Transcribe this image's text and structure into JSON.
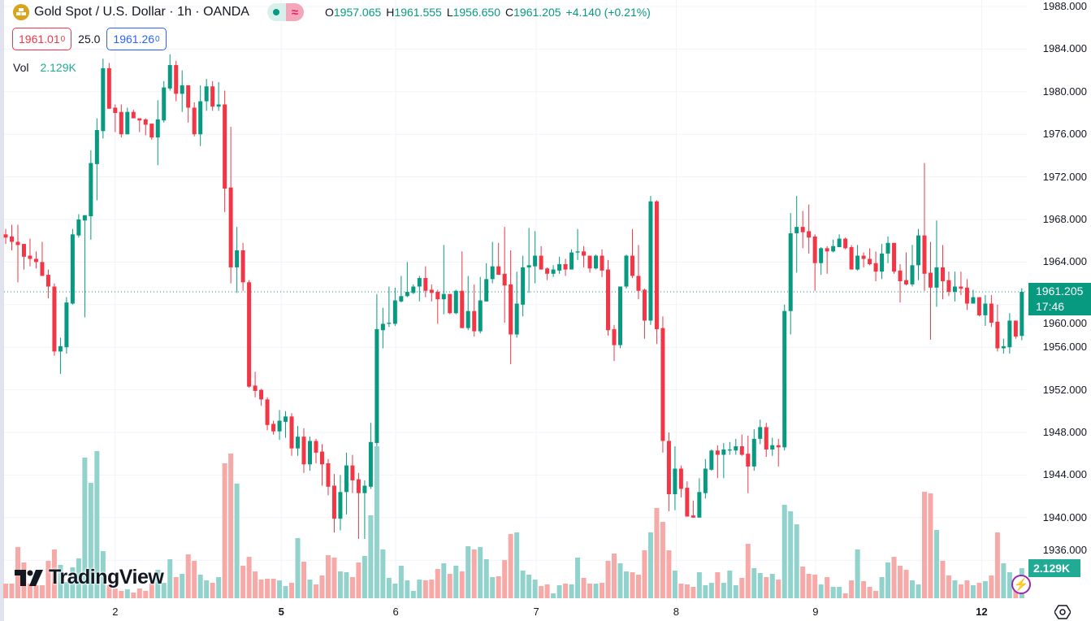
{
  "header": {
    "title": "Gold Spot / U.S. Dollar · 1h · OANDA",
    "status_glyph": "≈",
    "ohlc": [
      {
        "k": "O",
        "v": "1957.065"
      },
      {
        "k": "H",
        "v": "1961.555"
      },
      {
        "k": "L",
        "v": "1956.650"
      },
      {
        "k": "C",
        "v": "1961.205"
      }
    ],
    "change": "+4.140 (+0.21%)",
    "sell_price": "1961.01",
    "sell_sup": "0",
    "spread": "25.0",
    "buy_price": "1961.26",
    "buy_sup": "0",
    "vol_label": "Vol",
    "vol_value": "2.129K"
  },
  "price_tag": {
    "price": "1961.205",
    "countdown": "17:46"
  },
  "volume_tag": "2.129K",
  "logo_text": "TradingView",
  "colors": {
    "up": "#089981",
    "down": "#f23645",
    "vol_up": "#92d2cc",
    "vol_down": "#f7a9a7"
  },
  "chart_data": {
    "type": "candlestick",
    "symbol": "XAUUSD",
    "interval": "1h",
    "ylim": [
      1934,
      1988
    ],
    "yticks": [
      "1988.000",
      "1984.000",
      "1980.000",
      "1976.000",
      "1972.000",
      "1968.000",
      "1964.000",
      "1960.000",
      "1956.000",
      "1952.000",
      "1948.000",
      "1944.000",
      "1940.000",
      "1936.000"
    ],
    "ytick_values": [
      1988,
      1984,
      1980,
      1976,
      1972,
      1968,
      1964,
      1960,
      1956,
      1952,
      1948,
      1944,
      1940,
      1936
    ],
    "xticks": [
      {
        "label": "2",
        "index": 18,
        "bold": false
      },
      {
        "label": "5",
        "index": 45.3,
        "bold": true
      },
      {
        "label": "6",
        "index": 64.1,
        "bold": false
      },
      {
        "label": "7",
        "index": 87.2,
        "bold": false
      },
      {
        "label": "8",
        "index": 110.2,
        "bold": false
      },
      {
        "label": "9",
        "index": 133.1,
        "bold": false
      },
      {
        "label": "12",
        "index": 160.4,
        "bold": true
      }
    ],
    "last_price": 1961.205,
    "ohlc": [
      [
        1966.6,
        1967.1,
        1965.7,
        1966.3
      ],
      [
        1966.4,
        1967.5,
        1965.1,
        1965.9
      ],
      [
        1965.9,
        1967.5,
        1962.1,
        1965.6
      ],
      [
        1965.7,
        1965.7,
        1963.3,
        1964.5
      ],
      [
        1964.6,
        1966.2,
        1963.6,
        1964.3
      ],
      [
        1964.3,
        1965.0,
        1963.4,
        1964.0
      ],
      [
        1964.0,
        1965.9,
        1962.7,
        1962.7
      ],
      [
        1962.8,
        1963.3,
        1960.6,
        1961.7
      ],
      [
        1961.7,
        1962.0,
        1955.2,
        1955.6
      ],
      [
        1955.6,
        1956.9,
        1953.5,
        1956.1
      ],
      [
        1956.0,
        1960.7,
        1955.4,
        1960.2
      ],
      [
        1960.1,
        1967.1,
        1960.0,
        1966.6
      ],
      [
        1966.5,
        1968.5,
        1966.3,
        1968.0
      ],
      [
        1967.9,
        1968.4,
        1958.8,
        1968.4
      ],
      [
        1968.3,
        1974.5,
        1966.1,
        1973.3
      ],
      [
        1973.2,
        1977.5,
        1969.8,
        1976.4
      ],
      [
        1976.3,
        1983.1,
        1975.6,
        1982.2
      ],
      [
        1982.2,
        1982.7,
        1978.4,
        1978.4
      ],
      [
        1978.5,
        1978.8,
        1976.2,
        1978.0
      ],
      [
        1978.1,
        1978.8,
        1975.7,
        1976.0
      ],
      [
        1976.0,
        1978.5,
        1976.0,
        1978.1
      ],
      [
        1978.1,
        1978.3,
        1977.5,
        1977.5
      ],
      [
        1977.5,
        1977.5,
        1976.2,
        1977.3
      ],
      [
        1977.4,
        1977.5,
        1975.9,
        1976.9
      ],
      [
        1977.0,
        1977.0,
        1975.5,
        1975.7
      ],
      [
        1975.7,
        1979.2,
        1973.1,
        1977.4
      ],
      [
        1977.3,
        1981.0,
        1977.1,
        1980.4
      ],
      [
        1980.3,
        1983.5,
        1980.1,
        1982.5
      ],
      [
        1982.5,
        1982.9,
        1979.1,
        1979.8
      ],
      [
        1979.8,
        1982.0,
        1978.1,
        1980.6
      ],
      [
        1980.6,
        1980.6,
        1977.1,
        1978.5
      ],
      [
        1978.5,
        1979.0,
        1975.8,
        1976.0
      ],
      [
        1976.0,
        1980.6,
        1974.9,
        1979.1
      ],
      [
        1979.1,
        1981.2,
        1978.2,
        1980.5
      ],
      [
        1980.5,
        1981.0,
        1978.2,
        1978.6
      ],
      [
        1978.6,
        1980.9,
        1978.2,
        1978.8
      ],
      [
        1978.8,
        1980.1,
        1968.7,
        1970.9
      ],
      [
        1971.0,
        1976.7,
        1962.0,
        1963.5
      ],
      [
        1963.5,
        1967.3,
        1961.1,
        1965.1
      ],
      [
        1965.1,
        1965.8,
        1961.3,
        1962.1
      ],
      [
        1962.1,
        1962.3,
        1952.2,
        1952.3
      ],
      [
        1952.4,
        1953.7,
        1951.3,
        1951.9
      ],
      [
        1952.0,
        1952.1,
        1950.5,
        1951.1
      ],
      [
        1951.1,
        1951.3,
        1948.2,
        1948.7
      ],
      [
        1948.8,
        1949.1,
        1947.8,
        1948.1
      ],
      [
        1948.1,
        1950.1,
        1947.3,
        1949.1
      ],
      [
        1949.0,
        1950.0,
        1947.5,
        1949.5
      ],
      [
        1949.5,
        1949.8,
        1945.8,
        1946.5
      ],
      [
        1946.5,
        1948.6,
        1945.8,
        1947.6
      ],
      [
        1947.6,
        1948.4,
        1944.2,
        1945.0
      ],
      [
        1945.0,
        1947.6,
        1944.4,
        1947.2
      ],
      [
        1947.2,
        1947.4,
        1945.1,
        1946.1
      ],
      [
        1946.2,
        1946.9,
        1943.0,
        1945.0
      ],
      [
        1945.1,
        1945.5,
        1942.1,
        1942.9
      ],
      [
        1943.0,
        1944.1,
        1938.6,
        1939.9
      ],
      [
        1939.9,
        1944.0,
        1938.8,
        1942.4
      ],
      [
        1942.4,
        1946.1,
        1940.3,
        1944.9
      ],
      [
        1944.9,
        1945.9,
        1942.3,
        1943.5
      ],
      [
        1943.6,
        1944.2,
        1938.0,
        1942.3
      ],
      [
        1942.3,
        1943.5,
        1938.0,
        1943.0
      ],
      [
        1942.9,
        1948.9,
        1942.7,
        1947.1
      ],
      [
        1947.0,
        1961.0,
        1946.7,
        1957.7
      ],
      [
        1957.6,
        1959.7,
        1955.9,
        1958.2
      ],
      [
        1958.2,
        1961.7,
        1957.9,
        1958.3
      ],
      [
        1958.2,
        1961.6,
        1958.0,
        1960.4
      ],
      [
        1960.3,
        1962.7,
        1960.2,
        1960.8
      ],
      [
        1960.8,
        1964.0,
        1960.7,
        1961.2
      ],
      [
        1961.1,
        1961.9,
        1961.0,
        1961.7
      ],
      [
        1961.7,
        1962.7,
        1960.3,
        1962.5
      ],
      [
        1962.5,
        1963.6,
        1960.7,
        1961.3
      ],
      [
        1961.4,
        1961.9,
        1960.3,
        1961.1
      ],
      [
        1961.2,
        1961.4,
        1958.2,
        1960.5
      ],
      [
        1960.5,
        1965.6,
        1959.1,
        1961.0
      ],
      [
        1961.0,
        1961.0,
        1959.1,
        1959.2
      ],
      [
        1959.2,
        1961.4,
        1959.1,
        1961.3
      ],
      [
        1961.3,
        1965.0,
        1957.8,
        1957.8
      ],
      [
        1957.8,
        1962.7,
        1957.6,
        1959.4
      ],
      [
        1959.4,
        1961.9,
        1957.0,
        1957.5
      ],
      [
        1957.5,
        1962.6,
        1957.3,
        1960.4
      ],
      [
        1960.3,
        1963.9,
        1960.3,
        1962.4
      ],
      [
        1962.4,
        1965.9,
        1962.0,
        1963.6
      ],
      [
        1963.6,
        1965.8,
        1962.8,
        1962.8
      ],
      [
        1962.9,
        1967.3,
        1958.3,
        1961.8
      ],
      [
        1961.9,
        1965.1,
        1954.4,
        1957.2
      ],
      [
        1957.2,
        1963.1,
        1956.9,
        1960.1
      ],
      [
        1960.0,
        1964.6,
        1958.9,
        1963.5
      ],
      [
        1963.5,
        1967.2,
        1961.1,
        1963.7
      ],
      [
        1963.6,
        1966.9,
        1962.0,
        1964.6
      ],
      [
        1964.6,
        1965.5,
        1963.3,
        1963.3
      ],
      [
        1963.4,
        1963.5,
        1962.3,
        1962.9
      ],
      [
        1962.9,
        1963.7,
        1962.6,
        1963.3
      ],
      [
        1963.2,
        1964.5,
        1962.9,
        1963.8
      ],
      [
        1963.8,
        1964.3,
        1962.7,
        1963.3
      ],
      [
        1963.3,
        1965.2,
        1963.3,
        1964.9
      ],
      [
        1964.9,
        1967.1,
        1964.2,
        1965.0
      ],
      [
        1965.0,
        1965.5,
        1963.5,
        1964.6
      ],
      [
        1964.6,
        1964.6,
        1963.0,
        1963.4
      ],
      [
        1963.4,
        1964.7,
        1963.3,
        1964.6
      ],
      [
        1964.6,
        1965.2,
        1962.6,
        1963.2
      ],
      [
        1963.3,
        1964.2,
        1957.1,
        1957.6
      ],
      [
        1957.7,
        1958.1,
        1954.7,
        1956.2
      ],
      [
        1956.2,
        1961.7,
        1955.9,
        1961.7
      ],
      [
        1961.7,
        1964.7,
        1961.5,
        1964.6
      ],
      [
        1964.6,
        1967.1,
        1962.5,
        1962.7
      ],
      [
        1962.7,
        1965.6,
        1960.5,
        1961.3
      ],
      [
        1961.4,
        1961.5,
        1956.8,
        1958.5
      ],
      [
        1958.5,
        1970.2,
        1958.1,
        1969.7
      ],
      [
        1969.7,
        1969.8,
        1956.3,
        1957.7
      ],
      [
        1957.8,
        1958.9,
        1946.1,
        1947.2
      ],
      [
        1947.2,
        1948.0,
        1940.6,
        1942.2
      ],
      [
        1942.2,
        1946.7,
        1940.7,
        1944.6
      ],
      [
        1944.6,
        1944.9,
        1941.9,
        1942.7
      ],
      [
        1942.8,
        1943.4,
        1940.1,
        1940.1
      ],
      [
        1940.2,
        1941.6,
        1940.0,
        1940.0
      ],
      [
        1940.0,
        1943.7,
        1940.0,
        1942.4
      ],
      [
        1942.3,
        1945.5,
        1941.8,
        1944.6
      ],
      [
        1944.5,
        1946.4,
        1944.4,
        1946.3
      ],
      [
        1946.3,
        1946.8,
        1943.7,
        1945.9
      ],
      [
        1945.9,
        1947.0,
        1943.7,
        1946.4
      ],
      [
        1946.3,
        1947.1,
        1945.9,
        1946.4
      ],
      [
        1946.3,
        1947.4,
        1945.9,
        1946.7
      ],
      [
        1946.7,
        1947.8,
        1945.8,
        1945.9
      ],
      [
        1946.0,
        1947.7,
        1942.3,
        1944.8
      ],
      [
        1944.8,
        1948.3,
        1944.4,
        1947.4
      ],
      [
        1947.4,
        1949.2,
        1946.9,
        1948.5
      ],
      [
        1948.5,
        1948.9,
        1945.7,
        1946.4
      ],
      [
        1946.4,
        1947.5,
        1945.8,
        1946.8
      ],
      [
        1946.8,
        1947.4,
        1944.8,
        1946.6
      ],
      [
        1946.6,
        1960.0,
        1946.3,
        1959.4
      ],
      [
        1959.4,
        1968.6,
        1957.2,
        1966.7
      ],
      [
        1966.7,
        1970.2,
        1963.0,
        1967.3
      ],
      [
        1967.3,
        1968.8,
        1965.3,
        1966.8
      ],
      [
        1966.9,
        1969.4,
        1964.8,
        1966.3
      ],
      [
        1966.4,
        1966.6,
        1961.3,
        1963.9
      ],
      [
        1963.9,
        1965.4,
        1962.8,
        1965.3
      ],
      [
        1965.3,
        1965.5,
        1962.9,
        1965.0
      ],
      [
        1965.0,
        1966.1,
        1964.9,
        1965.5
      ],
      [
        1965.4,
        1966.6,
        1965.4,
        1966.2
      ],
      [
        1966.2,
        1966.3,
        1965.2,
        1965.3
      ],
      [
        1965.4,
        1965.6,
        1963.3,
        1963.3
      ],
      [
        1963.3,
        1965.6,
        1963.2,
        1964.6
      ],
      [
        1964.6,
        1964.9,
        1963.5,
        1964.3
      ],
      [
        1964.3,
        1965.3,
        1963.7,
        1963.8
      ],
      [
        1963.9,
        1965.0,
        1962.2,
        1963.1
      ],
      [
        1963.1,
        1965.7,
        1962.4,
        1964.8
      ],
      [
        1964.8,
        1966.4,
        1963.9,
        1965.8
      ],
      [
        1965.8,
        1965.8,
        1962.9,
        1963.1
      ],
      [
        1963.2,
        1963.8,
        1960.2,
        1962.2
      ],
      [
        1962.3,
        1964.9,
        1961.8,
        1961.9
      ],
      [
        1961.9,
        1965.6,
        1961.7,
        1963.7
      ],
      [
        1963.7,
        1967.1,
        1962.3,
        1966.5
      ],
      [
        1966.5,
        1973.3,
        1961.3,
        1962.9
      ],
      [
        1963.0,
        1965.9,
        1956.7,
        1961.6
      ],
      [
        1961.6,
        1967.9,
        1959.8,
        1963.5
      ],
      [
        1963.5,
        1965.6,
        1960.5,
        1962.2
      ],
      [
        1962.3,
        1963.1,
        1960.8,
        1961.2
      ],
      [
        1961.2,
        1963.1,
        1960.3,
        1961.7
      ],
      [
        1961.7,
        1963.1,
        1960.9,
        1961.5
      ],
      [
        1961.6,
        1962.4,
        1959.5,
        1960.1
      ],
      [
        1960.1,
        1961.4,
        1960.1,
        1960.7
      ],
      [
        1960.7,
        1960.7,
        1958.9,
        1959.0
      ],
      [
        1959.0,
        1960.9,
        1958.0,
        1960.1
      ],
      [
        1960.1,
        1960.9,
        1957.9,
        1958.3
      ],
      [
        1958.4,
        1960.0,
        1955.6,
        1955.9
      ],
      [
        1955.9,
        1956.8,
        1955.4,
        1956.1
      ],
      [
        1956.0,
        1959.2,
        1955.4,
        1958.5
      ],
      [
        1958.5,
        1958.5,
        1956.8,
        1957.0
      ],
      [
        1957.065,
        1961.555,
        1956.65,
        1961.205
      ]
    ],
    "volume": [
      1035,
      1035,
      3620,
      2530,
      1035,
      920,
      920,
      2645,
      3450,
      2360,
      1150,
      2185,
      2820,
      9950,
      8165,
      10410,
      3335,
      920,
      690,
      520,
      630,
      400,
      690,
      520,
      1035,
      2010,
      1090,
      2760,
      1495,
      1725,
      3105,
      2645,
      1670,
      1265,
      1090,
      1495,
      9545,
      10235,
      8110,
      2300,
      2930,
      1900,
      1320,
      1380,
      1380,
      1265,
      860,
      1090,
      4255,
      2590,
      1320,
      980,
      1610,
      3050,
      2875,
      1900,
      1840,
      1495,
      2530,
      2990,
      5865,
      10750,
      3450,
      1440,
      1035,
      2300,
      1265,
      520,
      1320,
      1265,
      1320,
      2070,
      2470,
      1725,
      2300,
      1900,
      3680,
      3450,
      3620,
      2760,
      1495,
      1550,
      2700,
      4540,
      4660,
      1955,
      1670,
      1320,
      860,
      980,
      345,
      920,
      1035,
      980,
      2875,
      1440,
      1035,
      1035,
      1090,
      2645,
      3160,
      2470,
      1900,
      1840,
      1670,
      3390,
      4660,
      6380,
      5405,
      3390,
      1955,
      1035,
      980,
      805,
      1840,
      920,
      1090,
      1840,
      1090,
      1955,
      920,
      1440,
      3850,
      2130,
      1780,
      1495,
      1725,
      1320,
      6610,
      6150,
      5230,
      2240,
      1725,
      1670,
      980,
      1495,
      805,
      805,
      345,
      1265,
      3450,
      1210,
      805,
      520,
      1495,
      2530,
      2930,
      2300,
      2010,
      1265,
      980,
      7530,
      7420,
      4830,
      2645,
      1610,
      1265,
      980,
      1265,
      920,
      1090,
      1210,
      1610,
      4660,
      2470,
      1840,
      575,
      2129
    ]
  }
}
